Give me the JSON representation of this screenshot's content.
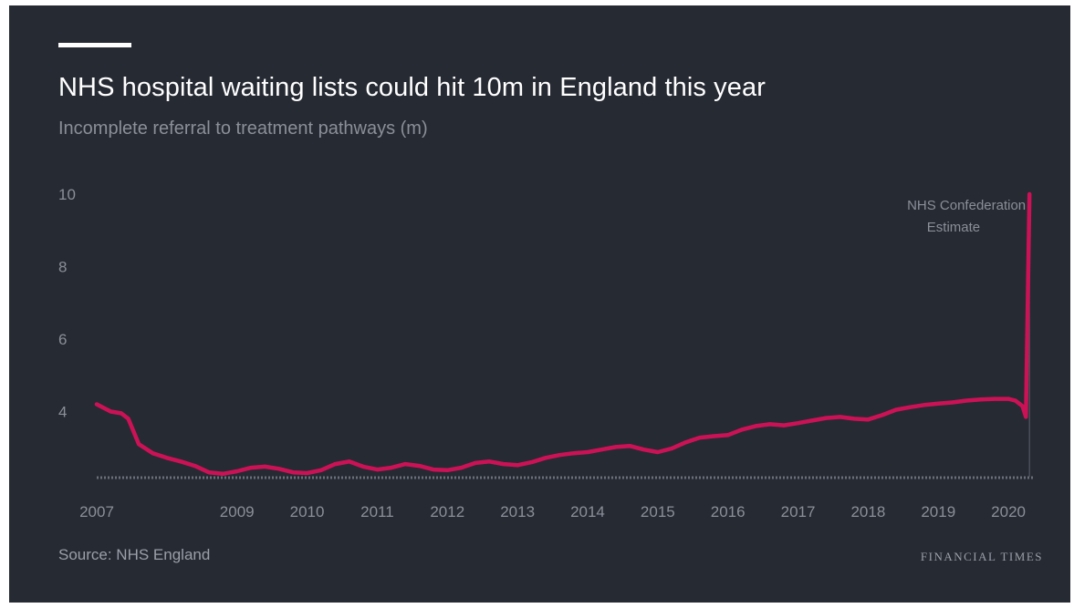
{
  "chart_data": {
    "type": "line",
    "title": "NHS hospital waiting lists could hit 10m in England this year",
    "subtitle": "Incomplete referral to treatment pathways (m)",
    "source": "Source: NHS England",
    "brand": "FINANCIAL TIMES",
    "ylim": [
      2.2,
      10
    ],
    "yticks": [
      "10",
      "8",
      "6",
      "4"
    ],
    "xticks": [
      "2007",
      "2009",
      "2010",
      "2011",
      "2012",
      "2013",
      "2014",
      "2015",
      "2016",
      "2017",
      "2018",
      "2019",
      "2020"
    ],
    "xlim": [
      2007,
      2020.35
    ],
    "grid": false,
    "colors": {
      "line": "#cc1256",
      "background": "#262a33",
      "text": "#8a8f98"
    },
    "series": [
      {
        "x": [
          2007.0,
          2007.2,
          2007.35,
          2007.45,
          2007.6,
          2007.8,
          2008.0,
          2008.2,
          2008.4,
          2008.6,
          2008.8,
          2009.0,
          2009.2,
          2009.4,
          2009.6,
          2009.8,
          2010.0,
          2010.2,
          2010.4,
          2010.6,
          2010.8,
          2011.0,
          2011.2,
          2011.4,
          2011.6,
          2011.8,
          2012.0,
          2012.2,
          2012.4,
          2012.6,
          2012.8,
          2013.0,
          2013.2,
          2013.4,
          2013.6,
          2013.8,
          2014.0,
          2014.2,
          2014.4,
          2014.6,
          2014.8,
          2015.0,
          2015.2,
          2015.4,
          2015.6,
          2015.8,
          2016.0,
          2016.2,
          2016.4,
          2016.6,
          2016.8,
          2017.0,
          2017.2,
          2017.4,
          2017.6,
          2017.8,
          2018.0,
          2018.2,
          2018.4,
          2018.6,
          2018.8,
          2019.0,
          2019.2,
          2019.4,
          2019.6,
          2019.8,
          2020.0,
          2020.1,
          2020.2,
          2020.25,
          2020.3
        ],
        "values": [
          4.2,
          4.0,
          3.95,
          3.8,
          3.1,
          2.85,
          2.72,
          2.62,
          2.5,
          2.32,
          2.28,
          2.35,
          2.45,
          2.48,
          2.42,
          2.32,
          2.3,
          2.38,
          2.55,
          2.62,
          2.48,
          2.4,
          2.45,
          2.55,
          2.5,
          2.4,
          2.38,
          2.45,
          2.58,
          2.62,
          2.55,
          2.52,
          2.6,
          2.72,
          2.8,
          2.85,
          2.88,
          2.95,
          3.02,
          3.05,
          2.95,
          2.88,
          2.98,
          3.15,
          3.28,
          3.32,
          3.35,
          3.5,
          3.6,
          3.65,
          3.62,
          3.68,
          3.75,
          3.82,
          3.85,
          3.8,
          3.78,
          3.9,
          4.05,
          4.12,
          4.18,
          4.22,
          4.25,
          4.3,
          4.33,
          4.35,
          4.35,
          4.3,
          4.15,
          3.85,
          10.0
        ]
      }
    ],
    "annotation": {
      "lines": [
        "NHS Confederation",
        "Estimate"
      ],
      "x": 2020.3
    }
  }
}
